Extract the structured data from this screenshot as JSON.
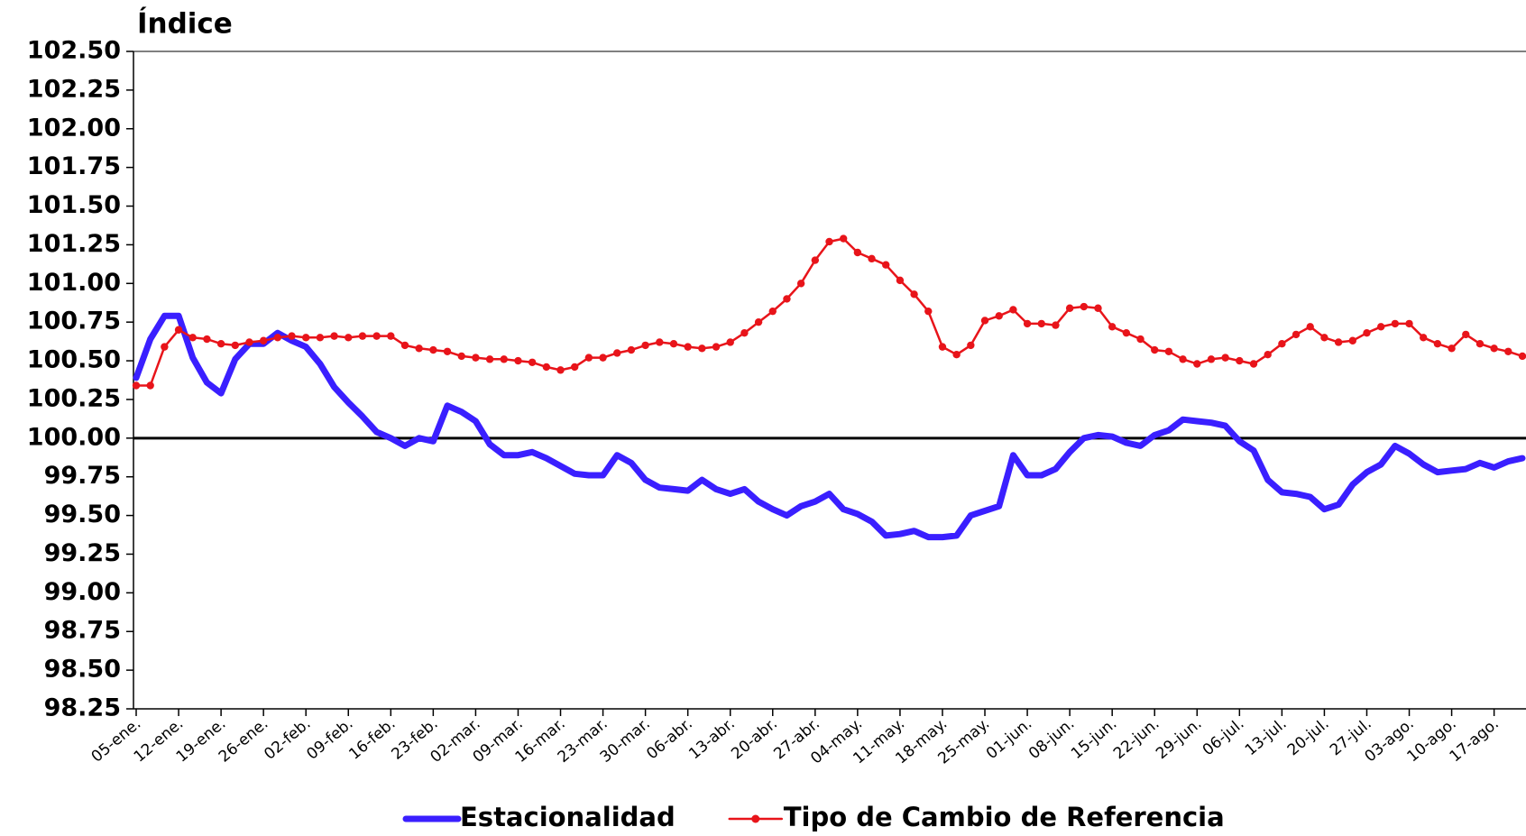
{
  "chart_data": {
    "type": "line",
    "y_axis_label": "Índice",
    "categories": [
      "05-ene.",
      null,
      null,
      "12-ene.",
      null,
      null,
      "19-ene.",
      null,
      null,
      "26-ene.",
      null,
      null,
      "02-feb.",
      null,
      null,
      "09-feb.",
      null,
      null,
      "16-feb.",
      null,
      null,
      "23-feb.",
      null,
      null,
      "02-mar.",
      null,
      null,
      "09-mar.",
      null,
      null,
      "16-mar.",
      null,
      null,
      "23-mar.",
      null,
      null,
      "30-mar.",
      null,
      null,
      "06-abr.",
      null,
      null,
      "13-abr.",
      null,
      null,
      "20-abr.",
      null,
      null,
      "27-abr.",
      null,
      null,
      "04-may.",
      null,
      null,
      "11-may.",
      null,
      null,
      "18-may.",
      null,
      null,
      "25-may.",
      null,
      null,
      "01-jun.",
      null,
      null,
      "08-jun.",
      null,
      null,
      "15-jun.",
      null,
      null,
      "22-jun.",
      null,
      null,
      "29-jun.",
      null,
      null,
      "06-jul.",
      null,
      null,
      "13-jul.",
      null,
      null,
      "20-jul.",
      null,
      null,
      "27-jul.",
      null,
      null,
      "03-ago.",
      null,
      null,
      "10-ago.",
      null,
      null,
      "17-ago.",
      null,
      null
    ],
    "series": [
      {
        "name": "Estacionalidad",
        "color": "#3a1fff",
        "marker": false,
        "values": [
          100.39,
          100.64,
          100.79,
          100.79,
          100.52,
          100.36,
          100.29,
          100.51,
          100.61,
          100.61,
          100.68,
          100.63,
          100.59,
          100.48,
          100.33,
          100.23,
          100.14,
          100.04,
          100.0,
          99.95,
          100.0,
          99.98,
          100.21,
          100.17,
          100.11,
          99.96,
          99.89,
          99.89,
          99.91,
          99.87,
          99.82,
          99.77,
          99.76,
          99.76,
          99.89,
          99.84,
          99.73,
          99.68,
          99.67,
          99.66,
          99.73,
          99.67,
          99.64,
          99.67,
          99.59,
          99.54,
          99.5,
          99.56,
          99.59,
          99.64,
          99.54,
          99.51,
          99.46,
          99.37,
          99.38,
          99.4,
          99.36,
          99.36,
          99.37,
          99.5,
          99.53,
          99.56,
          99.89,
          99.76,
          99.76,
          99.8,
          99.91,
          100.0,
          100.02,
          100.01,
          99.97,
          99.95,
          100.02,
          100.05,
          100.12,
          100.11,
          100.1,
          100.08,
          99.98,
          99.92,
          99.73,
          99.65,
          99.64,
          99.62,
          99.54,
          99.57,
          99.7,
          99.78,
          99.83,
          99.95,
          99.9,
          99.83,
          99.78,
          99.79,
          99.8,
          99.84,
          99.81,
          99.85,
          99.87
        ]
      },
      {
        "name": "Tipo de Cambio de Referencia",
        "color": "#e8141a",
        "marker": true,
        "values": [
          100.34,
          100.34,
          100.59,
          100.7,
          100.65,
          100.64,
          100.61,
          100.6,
          100.62,
          100.63,
          100.65,
          100.66,
          100.65,
          100.65,
          100.66,
          100.65,
          100.66,
          100.66,
          100.66,
          100.6,
          100.58,
          100.57,
          100.56,
          100.53,
          100.52,
          100.51,
          100.51,
          100.5,
          100.49,
          100.46,
          100.44,
          100.46,
          100.52,
          100.52,
          100.55,
          100.57,
          100.6,
          100.62,
          100.61,
          100.59,
          100.58,
          100.59,
          100.62,
          100.68,
          100.75,
          100.82,
          100.9,
          101.0,
          101.15,
          101.27,
          101.29,
          101.2,
          101.16,
          101.12,
          101.02,
          100.93,
          100.82,
          100.59,
          100.54,
          100.6,
          100.76,
          100.79,
          100.83,
          100.74,
          100.74,
          100.73,
          100.84,
          100.85,
          100.84,
          100.72,
          100.68,
          100.64,
          100.57,
          100.56,
          100.51,
          100.48,
          100.51,
          100.52,
          100.5,
          100.48,
          100.54,
          100.61,
          100.67,
          100.72,
          100.65,
          100.62,
          100.63,
          100.68,
          100.72,
          100.74,
          100.74,
          100.65,
          100.61,
          100.58,
          100.67,
          100.61,
          100.58,
          100.56,
          100.53
        ]
      }
    ],
    "ylim": [
      98.25,
      102.5
    ],
    "yticks": [
      {
        "value": 98.25,
        "label": "98.25"
      },
      {
        "value": 98.5,
        "label": "98.50"
      },
      {
        "value": 98.75,
        "label": "98.75"
      },
      {
        "value": 99,
        "label": "99.00"
      },
      {
        "value": 99.25,
        "label": "99.25"
      },
      {
        "value": 99.5,
        "label": "99.50"
      },
      {
        "value": 99.75,
        "label": "99.75"
      },
      {
        "value": 100,
        "label": "100.00"
      },
      {
        "value": 100.25,
        "label": "100.25"
      },
      {
        "value": 100.5,
        "label": "100.50"
      },
      {
        "value": 100.75,
        "label": "100.75"
      },
      {
        "value": 101,
        "label": "101.00"
      },
      {
        "value": 101.25,
        "label": "101.25"
      },
      {
        "value": 101.5,
        "label": "101.50"
      },
      {
        "value": 101.75,
        "label": "101.75"
      },
      {
        "value": 102,
        "label": "102.00"
      },
      {
        "value": 102.25,
        "label": "102.25"
      },
      {
        "value": 102.5,
        "label": "102.50"
      }
    ],
    "reference_line": 100,
    "grid": false,
    "legend_position": "bottom"
  }
}
